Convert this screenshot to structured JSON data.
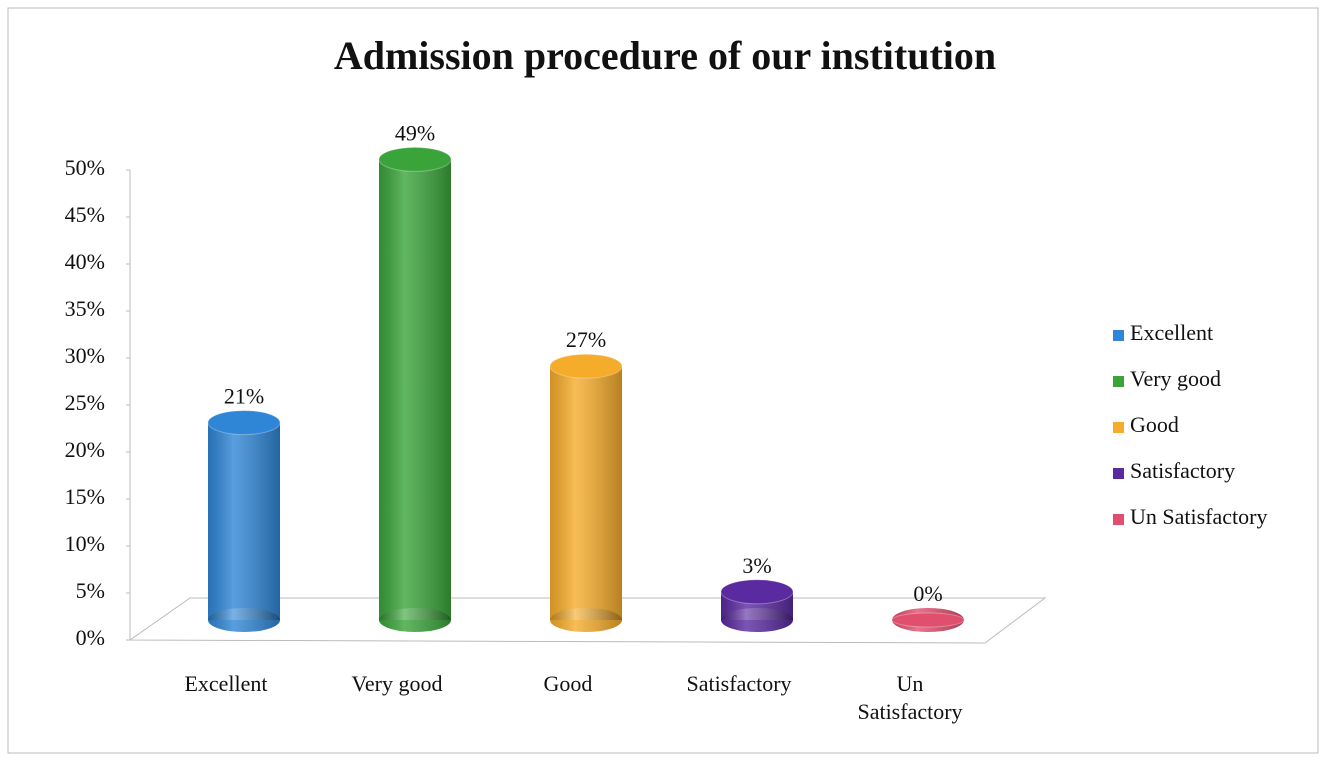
{
  "chart_data": {
    "type": "bar",
    "title": "Admission procedure of our institution",
    "categories": [
      "Excellent",
      "Very good",
      "Good",
      "Satisfactory",
      "Un Satisfactory"
    ],
    "values": [
      21,
      49,
      27,
      3,
      0
    ],
    "value_labels": [
      "21%",
      "49%",
      "27%",
      "3%",
      "0%"
    ],
    "colors": [
      "#2f86d6",
      "#3aa43a",
      "#f5ac2a",
      "#5a2aa0",
      "#e0506e"
    ],
    "ylim": [
      0,
      50
    ],
    "yticks": [
      {
        "value": 0,
        "label": "0%"
      },
      {
        "value": 5,
        "label": "5%"
      },
      {
        "value": 10,
        "label": "10%"
      },
      {
        "value": 15,
        "label": "15%"
      },
      {
        "value": 20,
        "label": "20%"
      },
      {
        "value": 25,
        "label": "25%"
      },
      {
        "value": 30,
        "label": "30%"
      },
      {
        "value": 35,
        "label": "35%"
      },
      {
        "value": 40,
        "label": "40%"
      },
      {
        "value": 45,
        "label": "45%"
      },
      {
        "value": 50,
        "label": "50%"
      }
    ],
    "legend": "right"
  }
}
